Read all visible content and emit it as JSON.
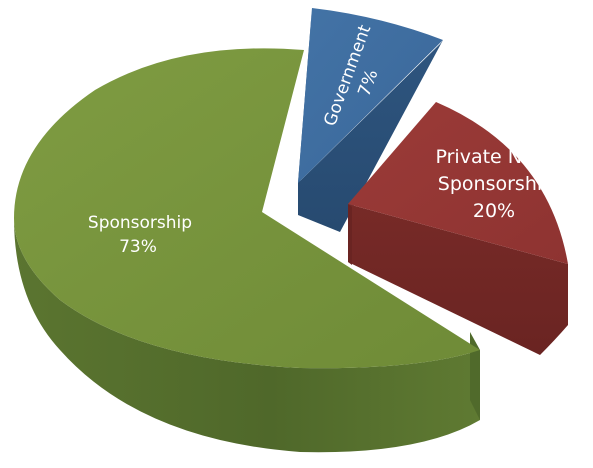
{
  "chart_data": {
    "type": "pie",
    "style": "3d-exploded",
    "legend": "none",
    "title": "",
    "slices": [
      {
        "name": "Sponsorship",
        "percent_label": "73%",
        "value": 73,
        "color": "#77933c",
        "side_color": "#5a7430"
      },
      {
        "name": "Government",
        "percent_label": "7%",
        "value": 7,
        "color": "#3d6da1",
        "side_color": "#2b5179"
      },
      {
        "name": "Private Non-Sponsorship",
        "label_lines": [
          "Private Non-",
          "Sponsorship"
        ],
        "percent_label": "20%",
        "value": 20,
        "color": "#953735",
        "side_color": "#722826"
      }
    ]
  }
}
